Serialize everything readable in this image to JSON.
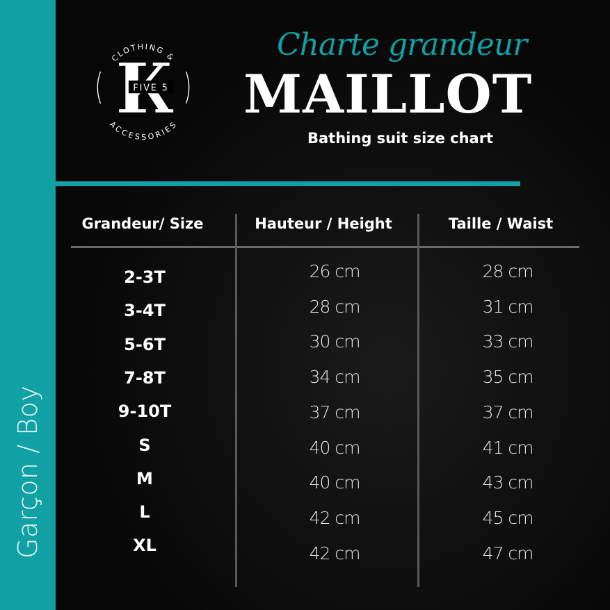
{
  "sidebar": {
    "label": "Garçon / Boy"
  },
  "logo": {
    "top_text": "CLOTHING &",
    "letter": "K",
    "middle_text": "FIVE 5",
    "bottom_text": "ACCESSORIES"
  },
  "header": {
    "script_title": "Charte grandeur",
    "title": "MAILLOT",
    "subtitle": "Bathing suit size chart"
  },
  "colors": {
    "accent": "#11a0a4",
    "background": "#050505"
  },
  "table": {
    "columns": [
      "Grandeur/ Size",
      "Hauteur / Height",
      "Taille / Waist"
    ],
    "rows": [
      {
        "size": "2-3T",
        "height": "26 cm",
        "waist": "28 cm"
      },
      {
        "size": "3-4T",
        "height": "28 cm",
        "waist": "31 cm"
      },
      {
        "size": "5-6T",
        "height": "30 cm",
        "waist": "33 cm"
      },
      {
        "size": "7-8T",
        "height": "34 cm",
        "waist": "35 cm"
      },
      {
        "size": "9-10T",
        "height": "37 cm",
        "waist": "37 cm"
      },
      {
        "size": "S",
        "height": "40 cm",
        "waist": "41 cm"
      },
      {
        "size": "M",
        "height": "40 cm",
        "waist": "43 cm"
      },
      {
        "size": "L",
        "height": "42 cm",
        "waist": "45 cm"
      },
      {
        "size": "XL",
        "height": "42 cm",
        "waist": "47 cm"
      }
    ]
  }
}
